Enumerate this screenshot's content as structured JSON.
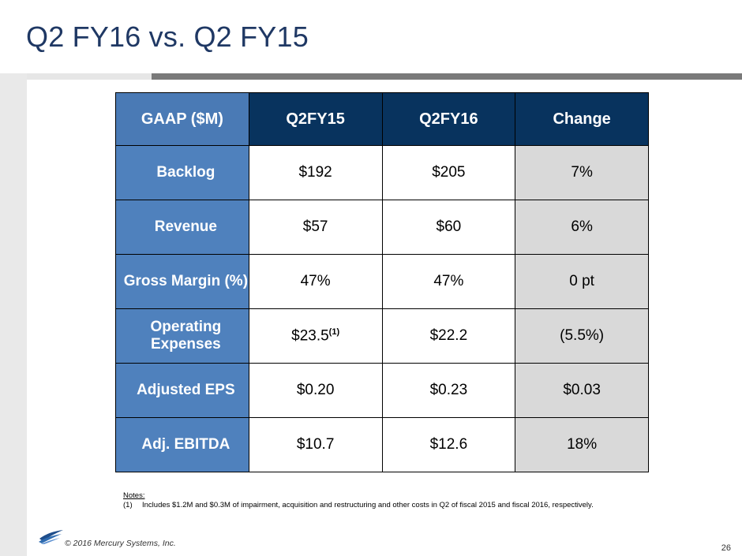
{
  "slide": {
    "title": "Q2 FY16 vs. Q2 FY15",
    "page_number": "26",
    "copyright": "© 2016 Mercury Systems, Inc."
  },
  "table": {
    "headers": [
      "GAAP ($M)",
      "Q2FY15",
      "Q2FY16",
      "Change"
    ],
    "rows": [
      {
        "metric": "Backlog",
        "q2fy15": "$192",
        "q2fy16": "$205",
        "change": "7%"
      },
      {
        "metric": "Revenue",
        "q2fy15": "$57",
        "q2fy16": "$60",
        "change": "6%"
      },
      {
        "metric": "Gross Margin (%)",
        "q2fy15": "47%",
        "q2fy16": "47%",
        "change": "0 pt"
      },
      {
        "metric": "Operating Expenses",
        "q2fy15": "$23.5",
        "q2fy15_note": "(1)",
        "q2fy16": "$22.2",
        "change": "(5.5%)"
      },
      {
        "metric": "Adjusted EPS",
        "q2fy15": "$0.20",
        "q2fy16": "$0.23",
        "change": "$0.03"
      },
      {
        "metric": "Adj. EBITDA",
        "q2fy15": "$10.7",
        "q2fy16": "$12.6",
        "change": "18%"
      }
    ]
  },
  "notes": {
    "heading": "Notes:",
    "items": [
      {
        "num": "(1)",
        "text": "Includes $1.2M and $0.3M of impairment, acquisition and restructuring and other costs in Q2 of fiscal 2015 and fiscal 2016, respectively."
      }
    ]
  },
  "colors": {
    "title": "#1f3864",
    "header_dark": "#08335e",
    "header_metric": "#4a7ab5",
    "row_label": "#4f81bd",
    "change_cell": "#d9d9d9"
  }
}
